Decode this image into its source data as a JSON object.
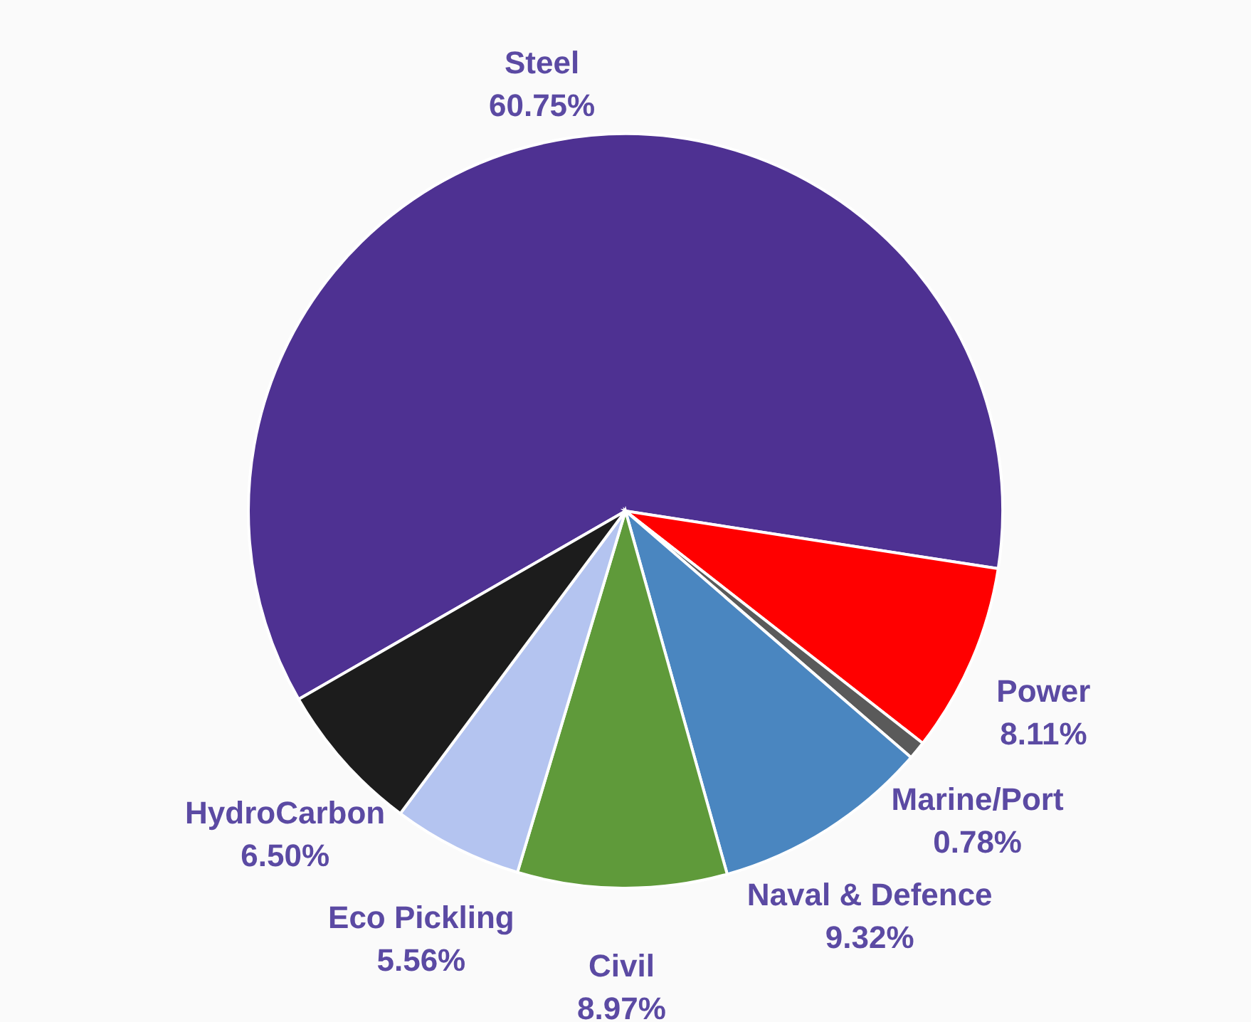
{
  "chart_data": {
    "type": "pie",
    "categories": [
      "Steel",
      "Power",
      "Marine/Port",
      "Naval & Defence",
      "Civil",
      "Eco Pickling",
      "HydroCarbon"
    ],
    "values": [
      60.75,
      8.11,
      0.78,
      9.32,
      8.97,
      5.56,
      6.5
    ],
    "colors": [
      "#4e3192",
      "#ff0000",
      "#5a5a5a",
      "#4a86c0",
      "#5f9a3a",
      "#b4c4f0",
      "#1c1c1c"
    ],
    "value_labels": [
      "60.75%",
      "8.11%",
      "0.78%",
      "9.32%",
      "8.97%",
      "5.56%",
      "6.50%"
    ]
  }
}
